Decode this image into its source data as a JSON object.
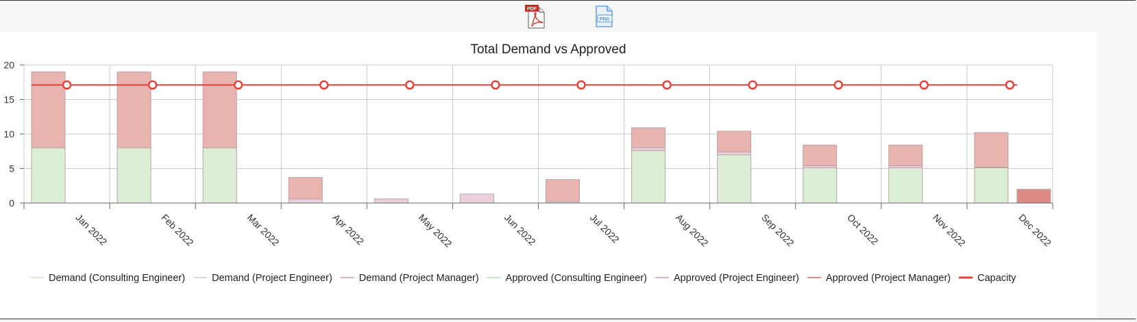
{
  "toolbar": {
    "pdf_badge": "PDF",
    "png_badge": "PNG"
  },
  "colors": {
    "demand_consulting": "#dcefd6",
    "demand_project_engineer": "#ecd0de",
    "demand_project_manager": "#e8b4b0",
    "approved_consulting": "#c8e6c0",
    "approved_project_engineer": "#d9b2c9",
    "approved_project_manager": "#de8b86",
    "capacity": "#e8413a",
    "grid": "#c8c8c8"
  },
  "chart_data": {
    "type": "bar",
    "title": "Total Demand vs Approved",
    "xlabel": "",
    "ylabel": "",
    "ylim": [
      0,
      20
    ],
    "yticks": [
      0,
      5,
      10,
      15,
      20
    ],
    "grid": true,
    "legend_position": "bottom",
    "categories": [
      "Jan 2022",
      "Feb 2022",
      "Mar 2022",
      "Apr 2022",
      "May 2022",
      "Jun 2022",
      "Jul 2022",
      "Aug 2022",
      "Sep 2022",
      "Oct 2022",
      "Nov 2022",
      "Dec 2022"
    ],
    "stacks": [
      "Demand",
      "Approved"
    ],
    "series": [
      {
        "name": "Demand (Consulting Engineer)",
        "stack": "Demand",
        "color_key": "demand_consulting",
        "values": [
          8,
          8,
          8,
          0,
          0,
          0,
          0,
          7.6,
          7,
          5.1,
          5.1,
          5.1
        ]
      },
      {
        "name": "Demand (Project Engineer)",
        "stack": "Demand",
        "color_key": "demand_project_engineer",
        "values": [
          0,
          0,
          0,
          0.6,
          0.6,
          1.3,
          0.2,
          0.4,
          0.4,
          0.3,
          0.3,
          0.1
        ]
      },
      {
        "name": "Demand (Project Manager)",
        "stack": "Demand",
        "color_key": "demand_project_manager",
        "values": [
          11,
          11,
          11,
          3.1,
          0,
          0,
          3.2,
          2.9,
          3,
          3,
          3,
          5
        ]
      },
      {
        "name": "Approved (Consulting Engineer)",
        "stack": "Approved",
        "color_key": "approved_consulting",
        "values": [
          0,
          0,
          0,
          0,
          0,
          0,
          0,
          0,
          0,
          0,
          0,
          0
        ]
      },
      {
        "name": "Approved (Project Engineer)",
        "stack": "Approved",
        "color_key": "approved_project_engineer",
        "values": [
          0,
          0,
          0,
          0,
          0,
          0,
          0,
          0,
          0,
          0,
          0,
          0
        ]
      },
      {
        "name": "Approved (Project Manager)",
        "stack": "Approved",
        "color_key": "approved_project_manager",
        "values": [
          0,
          0,
          0,
          0,
          0,
          0,
          0,
          0,
          0,
          0,
          0,
          2
        ]
      }
    ],
    "line_series": [
      {
        "name": "Capacity",
        "color_key": "capacity",
        "values": [
          17.1,
          17.1,
          17.1,
          17.1,
          17.1,
          17.1,
          17.1,
          17.1,
          17.1,
          17.1,
          17.1,
          17.1
        ]
      }
    ]
  }
}
